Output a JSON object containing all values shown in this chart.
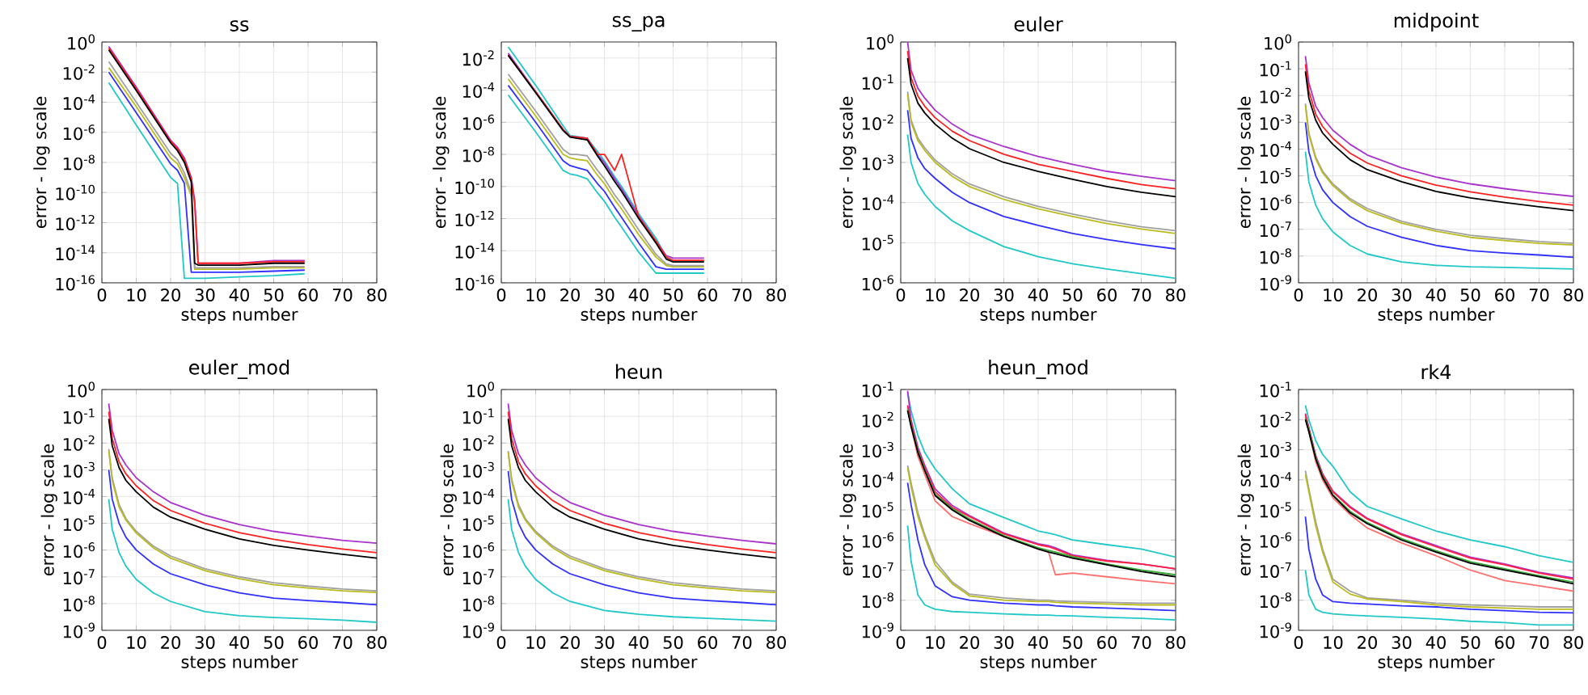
{
  "chart_data": [
    {
      "type": "line",
      "title": "ss",
      "xlabel": "steps number",
      "ylabel": "error - log scale",
      "log": "y",
      "grid": true,
      "xlim": [
        0,
        80
      ],
      "xticks": [
        0,
        10,
        20,
        30,
        40,
        50,
        60,
        70,
        80
      ],
      "ylim": [
        1e-16,
        1
      ],
      "yticks": [
        {
          "value": 1,
          "label": "10$^{0}$"
        },
        {
          "value": 0.01,
          "label": "10$^{-2}$"
        },
        {
          "value": 0.0001,
          "label": "10$^{-4}$"
        },
        {
          "value": 1e-06,
          "label": "10$^{-6}$"
        },
        {
          "value": 1e-08,
          "label": "10$^{-8}$"
        },
        {
          "value": 1e-10,
          "label": "10$^{-10}$"
        },
        {
          "value": 1e-12,
          "label": "10$^{-12}$"
        },
        {
          "value": 1e-14,
          "label": "10$^{-14}$"
        },
        {
          "value": 1e-16,
          "label": "10$^{-16}$"
        }
      ],
      "x": [
        2,
        10,
        20,
        22,
        24,
        26,
        27,
        28,
        30,
        40,
        50,
        59
      ],
      "series": [
        {
          "color": "#20c8c8",
          "values": [
            0.002,
            3e-06,
            1e-09,
            4e-10,
            2e-16,
            2e-16,
            2e-16,
            2e-16,
            2e-16,
            2.5e-16,
            3e-16,
            4e-16
          ]
        },
        {
          "color": "#3030ff",
          "values": [
            0.01,
            2e-05,
            8e-09,
            3e-09,
            4e-10,
            5e-16,
            5e-16,
            5e-16,
            5e-16,
            5e-16,
            6e-16,
            7e-16
          ]
        },
        {
          "color": "#bbbb20",
          "values": [
            0.02,
            5e-05,
            2e-08,
            8e-09,
            1e-09,
            6e-11,
            8e-16,
            8e-16,
            8e-16,
            8e-16,
            1e-15,
            1e-15
          ]
        },
        {
          "color": "#a0a0a0",
          "values": [
            0.05,
            0.0001,
            4e-08,
            1.5e-08,
            2e-09,
            1e-10,
            1e-15,
            1e-15,
            1e-15,
            1e-15,
            1.2e-15,
            1.2e-15
          ]
        },
        {
          "color": "#aa33cc",
          "values": [
            0.5,
            0.001,
            3e-07,
            1e-07,
            2e-08,
            1e-09,
            3e-11,
            2e-15,
            2e-15,
            2e-15,
            3e-15,
            3e-15
          ]
        },
        {
          "color": "#ff2020",
          "values": [
            0.4,
            0.0008,
            2.5e-07,
            8e-08,
            1.5e-08,
            8e-10,
            2e-11,
            2e-15,
            2e-15,
            2e-15,
            2.5e-15,
            2.5e-15
          ]
        },
        {
          "color": "#000000",
          "values": [
            0.3,
            0.0006,
            2e-07,
            6e-08,
            1e-08,
            5e-10,
            2e-15,
            1.5e-15,
            1.5e-15,
            1.5e-15,
            2e-15,
            2e-15
          ]
        }
      ]
    },
    {
      "type": "line",
      "title": "ss_pa",
      "xlabel": "steps number",
      "ylabel": "error - log scale",
      "log": "y",
      "grid": true,
      "xlim": [
        0,
        80
      ],
      "xticks": [
        0,
        10,
        20,
        30,
        40,
        50,
        60,
        70,
        80
      ],
      "ylim": [
        1e-16,
        0.1
      ],
      "yticks": [
        {
          "value": 0.01,
          "label": "10$^{-2}$"
        },
        {
          "value": 0.0001,
          "label": "10$^{-4}$"
        },
        {
          "value": 1e-06,
          "label": "10$^{-6}$"
        },
        {
          "value": 1e-08,
          "label": "10$^{-8}$"
        },
        {
          "value": 1e-10,
          "label": "10$^{-10}$"
        },
        {
          "value": 1e-12,
          "label": "10$^{-12}$"
        },
        {
          "value": 1e-14,
          "label": "10$^{-14}$"
        },
        {
          "value": 1e-16,
          "label": "10$^{-16}$"
        }
      ],
      "x": [
        2,
        10,
        18,
        20,
        22,
        25,
        28,
        30,
        33,
        35,
        40,
        45,
        48,
        50,
        59
      ],
      "series": [
        {
          "color": "#20c8c8",
          "values": [
            5e-05,
            2.5e-07,
            1e-09,
            6e-10,
            5e-10,
            3e-10,
            4e-11,
            1.2e-11,
            1.2e-12,
            3e-13,
            8e-15,
            4e-16,
            4e-16,
            4e-16,
            4e-16
          ]
        },
        {
          "color": "#3030ff",
          "values": [
            0.0002,
            1e-06,
            4e-09,
            2e-09,
            1.5e-09,
            1e-09,
            1.5e-10,
            5e-11,
            5e-12,
            1.2e-12,
            3e-14,
            1e-15,
            7e-16,
            7e-16,
            7e-16
          ]
        },
        {
          "color": "#bbbb20",
          "values": [
            0.0005,
            2.5e-06,
            1e-08,
            6e-09,
            5e-09,
            4e-09,
            5e-10,
            1.5e-10,
            1.5e-11,
            4e-12,
            1e-13,
            4e-15,
            1.2e-15,
            1e-15,
            1e-15
          ]
        },
        {
          "color": "#a0a0a0",
          "values": [
            0.001,
            5e-06,
            2e-08,
            1e-08,
            1e-08,
            8e-09,
            1e-09,
            3e-10,
            3e-11,
            8e-12,
            2e-13,
            6e-15,
            1.5e-15,
            1.2e-15,
            1.2e-15
          ]
        },
        {
          "color": "#20c8c8",
          "values": [
            0.05,
            0.0002,
            6e-07,
            1.5e-07,
            1.3e-07,
            1e-07,
            1.5e-08,
            4e-09,
            4e-10,
            1e-10,
            2e-12,
            6e-14,
            4e-15,
            2e-15,
            2e-15
          ]
        },
        {
          "color": "#aa33cc",
          "values": [
            0.02,
            8e-05,
            3.5e-07,
            1.3e-07,
            1.2e-07,
            1e-07,
            1e-08,
            3e-09,
            3e-10,
            7e-11,
            1.5e-12,
            4e-14,
            5e-15,
            3.5e-15,
            3.5e-15
          ]
        },
        {
          "color": "#ff2020",
          "values": [
            0.015,
            8e-05,
            3.5e-07,
            1.3e-07,
            1.2e-07,
            1e-07,
            1e-08,
            1e-08,
            1e-09,
            1e-08,
            1.2e-12,
            4e-14,
            4e-15,
            2.5e-15,
            2.5e-15
          ]
        },
        {
          "color": "#000000",
          "values": [
            0.015,
            7e-05,
            3e-07,
            1.2e-07,
            1e-07,
            8e-08,
            8e-09,
            2e-09,
            2e-10,
            5e-11,
            1e-12,
            3e-14,
            3e-15,
            2e-15,
            2e-15
          ]
        }
      ]
    },
    {
      "type": "line",
      "title": "euler",
      "xlabel": "steps number",
      "ylabel": "error - log scale",
      "log": "y",
      "grid": true,
      "xlim": [
        0,
        80
      ],
      "xticks": [
        0,
        10,
        20,
        30,
        40,
        50,
        60,
        70,
        80
      ],
      "ylim": [
        1e-06,
        1
      ],
      "yticks": [
        {
          "value": 1,
          "label": "10$^{0}$"
        },
        {
          "value": 0.1,
          "label": "10$^{-1}$"
        },
        {
          "value": 0.01,
          "label": "10$^{-2}$"
        },
        {
          "value": 0.001,
          "label": "10$^{-3}$"
        },
        {
          "value": 0.0001,
          "label": "10$^{-4}$"
        },
        {
          "value": 1e-05,
          "label": "10$^{-5}$"
        },
        {
          "value": 1e-06,
          "label": "10$^{-6}$"
        }
      ],
      "x": [
        2,
        3,
        5,
        7,
        10,
        15,
        20,
        30,
        40,
        50,
        60,
        70,
        80
      ],
      "series": [
        {
          "color": "#20c8c8",
          "values": [
            0.005,
            0.001,
            0.0003,
            0.00016,
            8e-05,
            3.5e-05,
            2e-05,
            8e-06,
            4.5e-06,
            3e-06,
            2.2e-06,
            1.7e-06,
            1.3e-06
          ]
        },
        {
          "color": "#3030ff",
          "values": [
            0.02,
            0.004,
            0.0013,
            0.0007,
            0.0004,
            0.00018,
            0.0001,
            4.5e-05,
            2.7e-05,
            1.7e-05,
            1.2e-05,
            9e-06,
            7e-06
          ]
        },
        {
          "color": "#a0a0a0",
          "values": [
            0.058,
            0.0115,
            0.004,
            0.0023,
            0.00115,
            0.00052,
            0.00029,
            0.00014,
            8e-05,
            5.2e-05,
            3.5e-05,
            2.5e-05,
            2e-05
          ]
        },
        {
          "color": "#bbbb20",
          "values": [
            0.05,
            0.01,
            0.0035,
            0.002,
            0.001,
            0.00045,
            0.00025,
            0.00012,
            7e-05,
            4.5e-05,
            3e-05,
            2.2e-05,
            1.7e-05
          ]
        },
        {
          "color": "#aa33cc",
          "values": [
            1,
            0.2,
            0.07,
            0.04,
            0.02,
            0.009,
            0.005,
            0.0025,
            0.0014,
            0.0009,
            0.0006,
            0.00045,
            0.00035
          ]
        },
        {
          "color": "#ff2020",
          "values": [
            0.6,
            0.13,
            0.045,
            0.025,
            0.013,
            0.006,
            0.0035,
            0.0016,
            0.0009,
            0.0006,
            0.0004,
            0.00028,
            0.00022
          ]
        },
        {
          "color": "#000000",
          "values": [
            0.4,
            0.09,
            0.03,
            0.017,
            0.009,
            0.004,
            0.0022,
            0.001,
            0.0006,
            0.00038,
            0.00025,
            0.00018,
            0.00014
          ]
        }
      ]
    },
    {
      "type": "line",
      "title": "midpoint",
      "xlabel": "steps number",
      "ylabel": "error - log scale",
      "log": "y",
      "grid": true,
      "xlim": [
        0,
        80
      ],
      "xticks": [
        0,
        10,
        20,
        30,
        40,
        50,
        60,
        70,
        80
      ],
      "ylim": [
        1e-09,
        1
      ],
      "yticks": [
        {
          "value": 1,
          "label": "10$^{0}$"
        },
        {
          "value": 0.1,
          "label": "10$^{-1}$"
        },
        {
          "value": 0.01,
          "label": "10$^{-2}$"
        },
        {
          "value": 0.001,
          "label": "10$^{-3}$"
        },
        {
          "value": 0.0001,
          "label": "10$^{-4}$"
        },
        {
          "value": 1e-05,
          "label": "10$^{-5}$"
        },
        {
          "value": 1e-06,
          "label": "10$^{-6}$"
        },
        {
          "value": 1e-07,
          "label": "10$^{-7}$"
        },
        {
          "value": 1e-08,
          "label": "10$^{-8}$"
        },
        {
          "value": 1e-09,
          "label": "10$^{-9}$"
        }
      ],
      "x": [
        2,
        3,
        5,
        7,
        10,
        15,
        20,
        30,
        40,
        50,
        60,
        70,
        80
      ],
      "series": [
        {
          "color": "#20c8c8",
          "values": [
            8e-05,
            6e-06,
            8e-07,
            2.5e-07,
            8e-08,
            2.5e-08,
            1.2e-08,
            6e-09,
            4.5e-09,
            4e-09,
            3.8e-09,
            3.5e-09,
            3.3e-09
          ]
        },
        {
          "color": "#3030ff",
          "values": [
            0.001,
            8e-05,
            1e-05,
            3e-06,
            1e-06,
            3e-07,
            1.3e-07,
            5e-08,
            2.5e-08,
            1.6e-08,
            1.3e-08,
            1.1e-08,
            9e-09
          ]
        },
        {
          "color": "#a0a0a0",
          "values": [
            0.005,
            0.0004,
            5e-05,
            1.5e-05,
            5e-06,
            1.4e-06,
            6e-07,
            2e-07,
            1e-07,
            6e-08,
            4.5e-08,
            3.5e-08,
            3e-08
          ]
        },
        {
          "color": "#bbbb20",
          "values": [
            0.0043,
            0.00034,
            4.3e-05,
            1.3e-05,
            4.3e-06,
            1.2e-06,
            5e-07,
            1.7e-07,
            8.5e-08,
            5e-08,
            3.8e-08,
            3e-08,
            2.6e-08
          ]
        },
        {
          "color": "#aa33cc",
          "values": [
            0.3,
            0.03,
            0.004,
            0.0015,
            0.0005,
            0.00015,
            6e-05,
            2e-05,
            9e-06,
            5e-06,
            3.3e-06,
            2.3e-06,
            1.7e-06
          ]
        },
        {
          "color": "#ff2020",
          "values": [
            0.15,
            0.015,
            0.002,
            0.0007,
            0.00025,
            7e-05,
            3e-05,
            1e-05,
            4.5e-06,
            2.5e-06,
            1.6e-06,
            1.1e-06,
            8e-07
          ]
        },
        {
          "color": "#000000",
          "values": [
            0.08,
            0.008,
            0.0012,
            0.0004,
            0.00015,
            4e-05,
            1.7e-05,
            6e-06,
            2.6e-06,
            1.5e-06,
            1e-06,
            7e-07,
            5e-07
          ]
        }
      ]
    },
    {
      "type": "line",
      "title": "euler_mod",
      "xlabel": "steps number",
      "ylabel": "error - log scale",
      "log": "y",
      "grid": true,
      "xlim": [
        0,
        80
      ],
      "xticks": [
        0,
        10,
        20,
        30,
        40,
        50,
        60,
        70,
        80
      ],
      "ylim": [
        1e-09,
        1
      ],
      "yticks": [
        {
          "value": 1,
          "label": "10$^{0}$"
        },
        {
          "value": 0.1,
          "label": "10$^{-1}$"
        },
        {
          "value": 0.01,
          "label": "10$^{-2}$"
        },
        {
          "value": 0.001,
          "label": "10$^{-3}$"
        },
        {
          "value": 0.0001,
          "label": "10$^{-4}$"
        },
        {
          "value": 1e-05,
          "label": "10$^{-5}$"
        },
        {
          "value": 1e-06,
          "label": "10$^{-6}$"
        },
        {
          "value": 1e-07,
          "label": "10$^{-7}$"
        },
        {
          "value": 1e-08,
          "label": "10$^{-8}$"
        },
        {
          "value": 1e-09,
          "label": "10$^{-9}$"
        }
      ],
      "x": [
        2,
        3,
        5,
        7,
        10,
        15,
        20,
        30,
        40,
        50,
        60,
        70,
        80
      ],
      "series": [
        {
          "color": "#20c8c8",
          "values": [
            8e-05,
            6e-06,
            8e-07,
            2.5e-07,
            8e-08,
            2.5e-08,
            1.2e-08,
            5e-09,
            3.5e-09,
            3e-09,
            2.7e-09,
            2.4e-09,
            2e-09
          ]
        },
        {
          "color": "#3030ff",
          "values": [
            0.001,
            8e-05,
            1e-05,
            3e-06,
            1e-06,
            3e-07,
            1.3e-07,
            5e-08,
            2.5e-08,
            1.6e-08,
            1.3e-08,
            1.1e-08,
            9e-09
          ]
        },
        {
          "color": "#a0a0a0",
          "values": [
            0.006,
            0.0005,
            5e-05,
            1.5e-05,
            5e-06,
            1.4e-06,
            6e-07,
            2e-07,
            1e-07,
            6e-08,
            4.5e-08,
            3.5e-08,
            3e-08
          ]
        },
        {
          "color": "#bbbb20",
          "values": [
            0.005,
            0.0004,
            4e-05,
            1.3e-05,
            4.3e-06,
            1.2e-06,
            5e-07,
            1.7e-07,
            8.5e-08,
            5e-08,
            3.8e-08,
            3e-08,
            2.6e-08
          ]
        },
        {
          "color": "#aa33cc",
          "values": [
            0.3,
            0.03,
            0.004,
            0.0015,
            0.0005,
            0.00015,
            6e-05,
            2e-05,
            9e-06,
            5e-06,
            3.3e-06,
            2.3e-06,
            1.8e-06
          ]
        },
        {
          "color": "#ff2020",
          "values": [
            0.15,
            0.015,
            0.002,
            0.0007,
            0.00025,
            7e-05,
            3e-05,
            1e-05,
            4.5e-06,
            2.5e-06,
            1.6e-06,
            1.1e-06,
            8e-07
          ]
        },
        {
          "color": "#000000",
          "values": [
            0.08,
            0.008,
            0.0012,
            0.0004,
            0.00015,
            4e-05,
            1.7e-05,
            6e-06,
            2.6e-06,
            1.5e-06,
            1e-06,
            7e-07,
            5e-07
          ]
        }
      ]
    },
    {
      "type": "line",
      "title": "heun",
      "xlabel": "steps number",
      "ylabel": "error - log scale",
      "log": "y",
      "grid": true,
      "xlim": [
        0,
        80
      ],
      "xticks": [
        0,
        10,
        20,
        30,
        40,
        50,
        60,
        70,
        80
      ],
      "ylim": [
        1e-09,
        1
      ],
      "yticks": [
        {
          "value": 1,
          "label": "10$^{0}$"
        },
        {
          "value": 0.1,
          "label": "10$^{-1}$"
        },
        {
          "value": 0.01,
          "label": "10$^{-2}$"
        },
        {
          "value": 0.001,
          "label": "10$^{-3}$"
        },
        {
          "value": 0.0001,
          "label": "10$^{-4}$"
        },
        {
          "value": 1e-05,
          "label": "10$^{-5}$"
        },
        {
          "value": 1e-06,
          "label": "10$^{-6}$"
        },
        {
          "value": 1e-07,
          "label": "10$^{-7}$"
        },
        {
          "value": 1e-08,
          "label": "10$^{-8}$"
        },
        {
          "value": 1e-09,
          "label": "10$^{-9}$"
        }
      ],
      "x": [
        2,
        3,
        5,
        7,
        10,
        15,
        20,
        30,
        40,
        50,
        60,
        70,
        80
      ],
      "series": [
        {
          "color": "#20c8c8",
          "values": [
            8e-05,
            6e-06,
            8e-07,
            2.5e-07,
            8e-08,
            2.5e-08,
            1.2e-08,
            5.5e-09,
            4e-09,
            3.2e-09,
            2.8e-09,
            2.5e-09,
            2.2e-09
          ]
        },
        {
          "color": "#3030ff",
          "values": [
            0.0009,
            8e-05,
            1e-05,
            3e-06,
            1e-06,
            3e-07,
            1.3e-07,
            5e-08,
            2.5e-08,
            1.6e-08,
            1.3e-08,
            1.1e-08,
            9e-09
          ]
        },
        {
          "color": "#a0a0a0",
          "values": [
            0.005,
            0.00045,
            5e-05,
            1.5e-05,
            5e-06,
            1.4e-06,
            6e-07,
            2e-07,
            1e-07,
            6e-08,
            4.5e-08,
            3.5e-08,
            3e-08
          ]
        },
        {
          "color": "#bbbb20",
          "values": [
            0.0045,
            0.00038,
            4e-05,
            1.3e-05,
            4.3e-06,
            1.2e-06,
            5e-07,
            1.7e-07,
            8.5e-08,
            5e-08,
            3.8e-08,
            3e-08,
            2.6e-08
          ]
        },
        {
          "color": "#aa33cc",
          "values": [
            0.3,
            0.03,
            0.004,
            0.0015,
            0.0005,
            0.00015,
            6e-05,
            2e-05,
            9e-06,
            5e-06,
            3.3e-06,
            2.3e-06,
            1.7e-06
          ]
        },
        {
          "color": "#ff2020",
          "values": [
            0.15,
            0.015,
            0.002,
            0.0007,
            0.00025,
            7e-05,
            3e-05,
            1e-05,
            4.5e-06,
            2.5e-06,
            1.6e-06,
            1.1e-06,
            8e-07
          ]
        },
        {
          "color": "#000000",
          "values": [
            0.08,
            0.008,
            0.0012,
            0.0004,
            0.00015,
            4e-05,
            1.7e-05,
            6e-06,
            2.6e-06,
            1.5e-06,
            1e-06,
            7e-07,
            5e-07
          ]
        }
      ]
    },
    {
      "type": "line",
      "title": "heun_mod",
      "xlabel": "steps number",
      "ylabel": "error - log scale",
      "log": "y",
      "grid": true,
      "xlim": [
        0,
        80
      ],
      "xticks": [
        0,
        10,
        20,
        30,
        40,
        50,
        60,
        70,
        80
      ],
      "ylim": [
        1e-09,
        0.1
      ],
      "yticks": [
        {
          "value": 0.1,
          "label": "10$^{-1}$"
        },
        {
          "value": 0.01,
          "label": "10$^{-2}$"
        },
        {
          "value": 0.001,
          "label": "10$^{-3}$"
        },
        {
          "value": 0.0001,
          "label": "10$^{-4}$"
        },
        {
          "value": 1e-05,
          "label": "10$^{-5}$"
        },
        {
          "value": 1e-06,
          "label": "10$^{-6}$"
        },
        {
          "value": 1e-07,
          "label": "10$^{-7}$"
        },
        {
          "value": 1e-08,
          "label": "10$^{-8}$"
        },
        {
          "value": 1e-09,
          "label": "10$^{-9}$"
        }
      ],
      "x": [
        2,
        3,
        5,
        7,
        10,
        15,
        20,
        30,
        40,
        43,
        45,
        50,
        60,
        70,
        80
      ],
      "series": [
        {
          "color": "#20c8c8",
          "values": [
            3e-06,
            2e-07,
            1.5e-08,
            7e-09,
            5e-09,
            4.2e-09,
            4e-09,
            3.5e-09,
            3.2e-09,
            3.2e-09,
            3.1e-09,
            3e-09,
            2.7e-09,
            2.5e-09,
            2.2e-09
          ]
        },
        {
          "color": "#3030ff",
          "values": [
            8e-05,
            1.5e-05,
            1e-06,
            1.5e-07,
            3e-08,
            1.3e-08,
            1e-08,
            8e-09,
            7e-09,
            7e-09,
            6.5e-09,
            6e-09,
            5.5e-09,
            5e-09,
            4.5e-09
          ]
        },
        {
          "color": "#a0a0a0",
          "values": [
            0.0003,
            8e-05,
            8e-06,
            1.5e-06,
            2e-07,
            4e-08,
            1.6e-08,
            1.2e-08,
            1e-08,
            1e-08,
            9.5e-09,
            9e-09,
            8.5e-09,
            8e-09,
            8e-09
          ]
        },
        {
          "color": "#bbbb20",
          "values": [
            0.00025,
            6e-05,
            6e-06,
            1.2e-06,
            1.5e-07,
            3.5e-08,
            1.4e-08,
            1e-08,
            9e-09,
            9e-09,
            8.5e-09,
            8e-09,
            7.5e-09,
            7e-09,
            7e-09
          ]
        },
        {
          "color": "#20c8c8",
          "values": [
            0.08,
            0.02,
            0.003,
            0.0008,
            0.00023,
            5e-05,
            1.6e-05,
            5.6e-06,
            2e-06,
            1.7e-06,
            1.5e-06,
            1e-06,
            7e-07,
            5e-07,
            2.7e-07
          ]
        },
        {
          "color": "#aa33cc",
          "values": [
            0.09,
            0.01,
            0.0012,
            0.0003,
            5e-05,
            1.4e-05,
            6.5e-06,
            1.7e-06,
            7.5e-07,
            6.5e-07,
            5.5e-07,
            3.2e-07,
            2.1e-07,
            1.6e-07,
            1.1e-07
          ]
        },
        {
          "color": "#ff7070",
          "values": [
            0.025,
            0.006,
            0.0006,
            0.00015,
            2e-05,
            6e-06,
            3.5e-06,
            1.3e-06,
            5e-07,
            4e-07,
            7e-08,
            8e-08,
            6e-08,
            4.5e-08,
            3.5e-08
          ]
        },
        {
          "color": "#ff2040",
          "values": [
            0.03,
            0.008,
            0.001,
            0.00025,
            4e-05,
            1.2e-05,
            6e-06,
            1.6e-06,
            7e-07,
            6e-07,
            5e-07,
            3e-07,
            2e-07,
            1.6e-07,
            1.1e-07
          ]
        },
        {
          "color": "#33aa33",
          "values": [
            0.022,
            0.0065,
            0.0009,
            0.00022,
            3.3e-05,
            1.1e-05,
            5e-06,
            1.4e-06,
            5.5e-07,
            4.5e-07,
            4e-07,
            2.8e-07,
            1.6e-07,
            1e-07,
            7e-08
          ]
        },
        {
          "color": "#000000",
          "values": [
            0.02,
            0.006,
            0.0008,
            0.0002,
            3e-05,
            1e-05,
            4.5e-06,
            1.3e-06,
            5e-07,
            4e-07,
            3.5e-07,
            2.5e-07,
            1.5e-07,
            9e-08,
            6e-08
          ]
        }
      ]
    },
    {
      "type": "line",
      "title": "rk4",
      "xlabel": "steps number",
      "ylabel": "error - log scale",
      "log": "y",
      "grid": true,
      "xlim": [
        0,
        80
      ],
      "xticks": [
        0,
        10,
        20,
        30,
        40,
        50,
        60,
        70,
        80
      ],
      "ylim": [
        1e-09,
        0.1
      ],
      "yticks": [
        {
          "value": 0.1,
          "label": "10$^{-1}$"
        },
        {
          "value": 0.01,
          "label": "10$^{-2}$"
        },
        {
          "value": 0.001,
          "label": "10$^{-3}$"
        },
        {
          "value": 0.0001,
          "label": "10$^{-4}$"
        },
        {
          "value": 1e-05,
          "label": "10$^{-5}$"
        },
        {
          "value": 1e-06,
          "label": "10$^{-6}$"
        },
        {
          "value": 1e-07,
          "label": "10$^{-7}$"
        },
        {
          "value": 1e-08,
          "label": "10$^{-8}$"
        },
        {
          "value": 1e-09,
          "label": "10$^{-9}$"
        }
      ],
      "x": [
        2,
        3,
        5,
        7,
        10,
        15,
        20,
        30,
        40,
        50,
        60,
        70,
        80
      ],
      "series": [
        {
          "color": "#20c8c8",
          "values": [
            1e-07,
            1.5e-08,
            5e-09,
            4e-09,
            3.5e-09,
            3.2e-09,
            3e-09,
            2.7e-09,
            2.4e-09,
            2e-09,
            1.8e-09,
            1.5e-09,
            1.5e-09
          ]
        },
        {
          "color": "#3030ff",
          "values": [
            6e-06,
            5e-07,
            5e-08,
            1.5e-08,
            9e-09,
            8e-09,
            7.5e-09,
            6.5e-09,
            6e-09,
            5e-09,
            4.5e-09,
            4e-09,
            3.8e-09
          ]
        },
        {
          "color": "#a0a0a0",
          "values": [
            0.0002,
            5e-05,
            4e-06,
            5e-07,
            5e-08,
            2e-08,
            1.2e-08,
            1e-08,
            8e-09,
            7e-09,
            6.5e-09,
            6e-09,
            6e-09
          ]
        },
        {
          "color": "#bbbb20",
          "values": [
            0.00015,
            4e-05,
            3e-06,
            4e-07,
            4e-08,
            1.6e-08,
            1.1e-08,
            9e-09,
            7e-09,
            6e-09,
            5.5e-09,
            5e-09,
            5e-09
          ]
        },
        {
          "color": "#20c8c8",
          "values": [
            0.03,
            0.01,
            0.002,
            0.0007,
            0.00028,
            4e-05,
            1.3e-05,
            5e-06,
            2e-06,
            1e-06,
            6e-07,
            3e-07,
            1.8e-07
          ]
        },
        {
          "color": "#aa33cc",
          "values": [
            0.016,
            0.0055,
            0.00065,
            0.00016,
            4.2e-05,
            1.3e-05,
            5.3e-06,
            1.6e-06,
            6.5e-07,
            2.7e-07,
            1.6e-07,
            8.5e-08,
            5.5e-08
          ]
        },
        {
          "color": "#ff7070",
          "values": [
            0.012,
            0.004,
            0.0004,
            0.0001,
            2.5e-05,
            7e-06,
            2.5e-06,
            8e-07,
            3e-07,
            1e-07,
            4.5e-08,
            3e-08,
            2e-08
          ]
        },
        {
          "color": "#ff2040",
          "values": [
            0.015,
            0.005,
            0.0006,
            0.00015,
            4e-05,
            1.2e-05,
            5e-06,
            1.5e-06,
            6e-07,
            2.5e-07,
            1.5e-07,
            8e-08,
            5e-08
          ]
        },
        {
          "color": "#33aa33",
          "values": [
            0.011,
            0.0045,
            0.00055,
            0.00013,
            3.2e-05,
            9e-06,
            3.8e-06,
            1.1e-06,
            4.4e-07,
            1.9e-07,
            1.1e-07,
            6.5e-08,
            4e-08
          ]
        },
        {
          "color": "#000000",
          "values": [
            0.01,
            0.004,
            0.0005,
            0.00012,
            3e-05,
            8e-06,
            3.5e-06,
            1e-06,
            4e-07,
            1.7e-07,
            1e-07,
            6e-08,
            3.5e-08
          ]
        }
      ]
    }
  ]
}
